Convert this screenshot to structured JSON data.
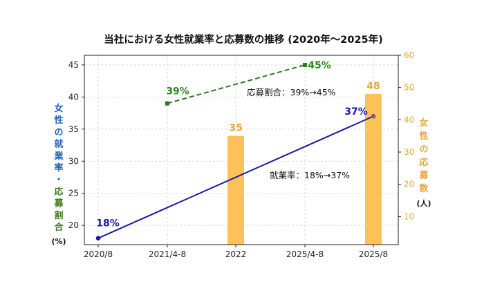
{
  "chart_data": {
    "type": "bar+line",
    "title": "当社における女性就業率と応募数の推移 (2020年〜2025年)",
    "categories": [
      "2020/8",
      "2021/4-8",
      "2022",
      "2025/4-8",
      "2025/8"
    ],
    "ylabel_left_part1": "女性の就業率・",
    "ylabel_left_part2": "応募割合",
    "ylabel_left_unit": "(%)",
    "ylabel_right": "女性の応募数",
    "ylabel_right_unit": "(人)",
    "ylim_left": [
      17,
      46.5
    ],
    "ylim_right": [
      1.3,
      60
    ],
    "yticks_left": [
      20,
      25,
      30,
      35,
      40,
      45
    ],
    "yticks_right": [
      10,
      20,
      30,
      40,
      50,
      60
    ],
    "grid": true,
    "series": [
      {
        "name": "就業率",
        "kind": "line",
        "axis": "left",
        "color": "#1a1aa6",
        "points": [
          {
            "x": "2020/8",
            "y": 18
          },
          {
            "x": "2025/8",
            "y": 37
          }
        ],
        "labels": [
          "18%",
          "37%"
        ]
      },
      {
        "name": "応募割合",
        "kind": "line-dashed",
        "axis": "left",
        "color": "#2a7a1e",
        "points": [
          {
            "x": "2021/4-8",
            "y": 39
          },
          {
            "x": "2025/4-8",
            "y": 45
          }
        ],
        "labels": [
          "39%",
          "45%"
        ]
      },
      {
        "name": "応募数",
        "kind": "bar",
        "axis": "right",
        "color": "#fdc15a",
        "points": [
          {
            "x": "2022",
            "y": 35
          },
          {
            "x": "2025/8",
            "y": 48
          }
        ],
        "labels": [
          "35",
          "48"
        ]
      }
    ],
    "annotations": [
      "応募割合：39%→45%",
      "就業率：18%→37%"
    ]
  }
}
